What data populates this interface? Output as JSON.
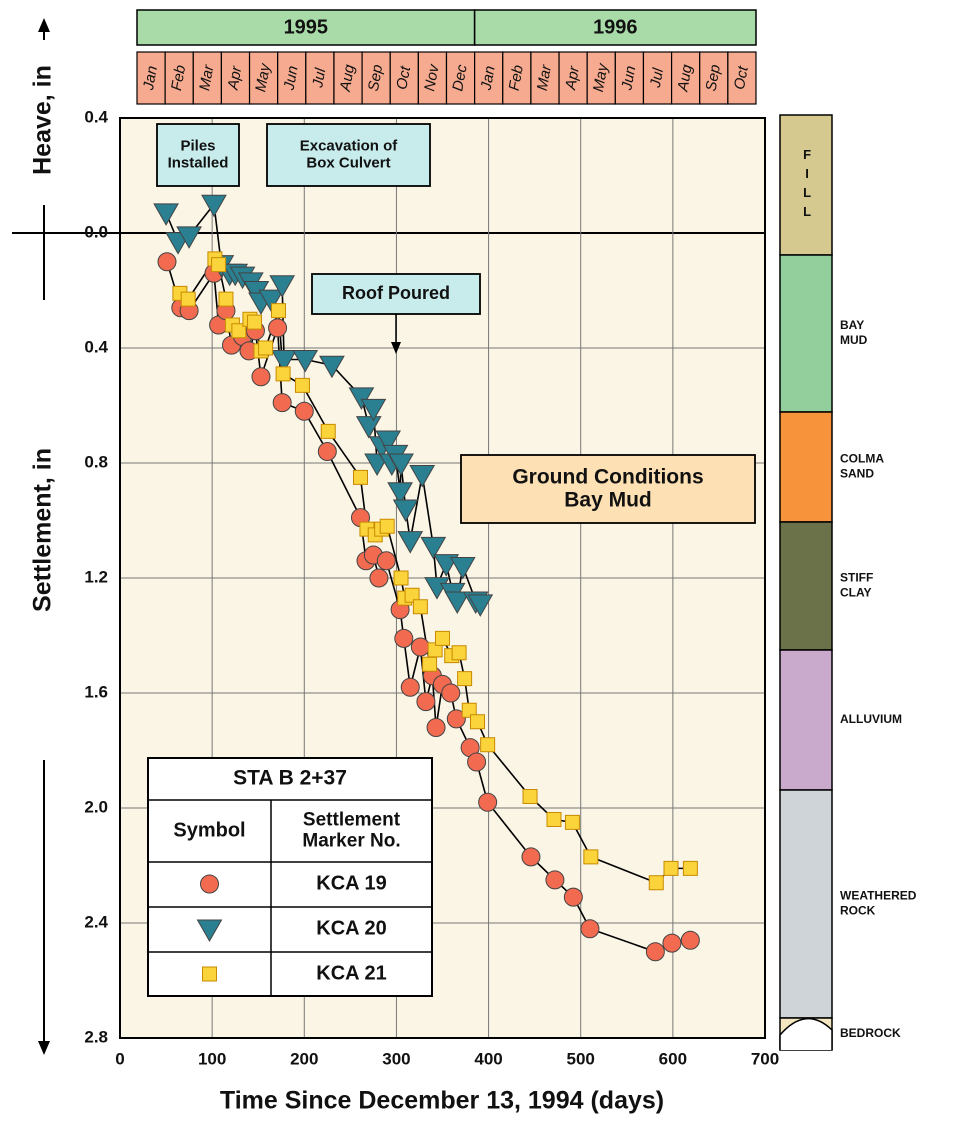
{
  "chart_data": {
    "type": "scatter-line",
    "x_label": "Time Since December 13, 1994 (days)",
    "heave_label": "Heave, in",
    "settlement_label": "Settlement, in",
    "y_inverted": true,
    "grid": true,
    "xlim": [
      0,
      700
    ],
    "xticks": [
      0,
      100,
      200,
      300,
      400,
      500,
      600,
      700
    ],
    "ylim": [
      -0.4,
      2.8
    ],
    "yticks": [
      {
        "value": -0.4,
        "label": "0.4"
      },
      {
        "value": 0,
        "label": "0.0"
      },
      {
        "value": 0.4,
        "label": "0.4"
      },
      {
        "value": 0.8,
        "label": "0.8"
      },
      {
        "value": 1.2,
        "label": "1.2"
      },
      {
        "value": 1.6,
        "label": "1.6"
      },
      {
        "value": 2.0,
        "label": "2.0"
      },
      {
        "value": 2.4,
        "label": "2.4"
      },
      {
        "value": 2.8,
        "label": "2.8"
      }
    ],
    "years": [
      {
        "label": "1995",
        "months": [
          "Jan",
          "Feb",
          "Mar",
          "Apr",
          "May",
          "Jun",
          "Jul",
          "Aug",
          "Sep",
          "Oct",
          "Nov",
          "Dec"
        ]
      },
      {
        "label": "1996",
        "months": [
          "Jan",
          "Feb",
          "Mar",
          "Apr",
          "May",
          "Jun",
          "Jul",
          "Aug",
          "Sep",
          "Oct"
        ]
      }
    ],
    "annotations": [
      {
        "lines": [
          "Piles",
          "Installed"
        ]
      },
      {
        "lines": [
          "Excavation of",
          "Box Culvert"
        ]
      },
      {
        "lines": [
          "Roof Poured"
        ]
      },
      {
        "lines": [
          "Ground Conditions",
          "Bay Mud"
        ]
      }
    ],
    "legend": {
      "title": "STA B 2+37",
      "col1": "Symbol",
      "col2": [
        "Settlement",
        "Marker No."
      ]
    },
    "soil_layers": [
      {
        "label": [
          "FILL"
        ],
        "color": "#d5c98f"
      },
      {
        "label": [
          "BAY",
          "MUD"
        ],
        "color": "#93cf9c"
      },
      {
        "label": [
          "COLMA",
          "SAND"
        ],
        "color": "#f7933a"
      },
      {
        "label": [
          "STIFF",
          "CLAY"
        ],
        "color": "#6b7249"
      },
      {
        "label": [
          "ALLUVIUM"
        ],
        "color": "#c9a9cc"
      },
      {
        "label": [
          "WEATHERED",
          "ROCK"
        ],
        "color": "#cfd4d8"
      },
      {
        "label": [
          "BEDROCK"
        ],
        "color": "#f3e6c0"
      }
    ],
    "series": [
      {
        "name": "KCA 19",
        "marker": "circle",
        "color": "#f26b50",
        "x": [
          51,
          66,
          75,
          102,
          107,
          115,
          121,
          133,
          140,
          147,
          153,
          171,
          176,
          200,
          225,
          261,
          267,
          275,
          281,
          289,
          304,
          308,
          315,
          326,
          332,
          339,
          343,
          350,
          359,
          365,
          380,
          387,
          399,
          446,
          472,
          492,
          510,
          581,
          599,
          619
        ],
        "values": [
          0.1,
          0.26,
          0.27,
          0.14,
          0.32,
          0.27,
          0.39,
          0.36,
          0.41,
          0.34,
          0.5,
          0.33,
          0.59,
          0.62,
          0.76,
          0.99,
          1.14,
          1.12,
          1.2,
          1.14,
          1.31,
          1.41,
          1.58,
          1.44,
          1.63,
          1.54,
          1.72,
          1.57,
          1.6,
          1.69,
          1.79,
          1.84,
          1.98,
          2.17,
          2.25,
          2.31,
          2.42,
          2.5,
          2.47,
          2.46
        ]
      },
      {
        "name": "KCA 20",
        "marker": "triangle",
        "color": "#2a7f90",
        "x": [
          50,
          63,
          75,
          102,
          110,
          119,
          125,
          133,
          142,
          148,
          153,
          164,
          176,
          178,
          201,
          230,
          262,
          270,
          275,
          279,
          284,
          291,
          295,
          299,
          304,
          305,
          310,
          315,
          328,
          340,
          344,
          354,
          361,
          366,
          372,
          386,
          391
        ],
        "values": [
          -0.07,
          0.03,
          0.01,
          -0.1,
          0.11,
          0.14,
          0.14,
          0.15,
          0.17,
          0.2,
          0.24,
          0.23,
          0.18,
          0.44,
          0.44,
          0.46,
          0.57,
          0.67,
          0.61,
          0.8,
          0.74,
          0.72,
          0.8,
          0.77,
          0.9,
          0.8,
          0.96,
          1.07,
          0.84,
          1.09,
          1.23,
          1.15,
          1.25,
          1.28,
          1.16,
          1.28,
          1.29
        ]
      },
      {
        "name": "KCA 21",
        "marker": "square",
        "color": "#fad43a",
        "x": [
          65,
          74,
          103,
          107,
          115,
          122,
          129,
          141,
          146,
          153,
          158,
          172,
          177,
          198,
          226,
          261,
          268,
          277,
          284,
          290,
          305,
          309,
          317,
          326,
          336,
          342,
          350,
          360,
          368,
          374,
          379,
          388,
          399,
          445,
          471,
          491,
          511,
          582,
          598,
          619
        ],
        "values": [
          0.21,
          0.23,
          0.09,
          0.11,
          0.23,
          0.32,
          0.34,
          0.3,
          0.31,
          0.41,
          0.4,
          0.27,
          0.49,
          0.53,
          0.69,
          0.85,
          1.03,
          1.05,
          1.03,
          1.02,
          1.2,
          1.27,
          1.26,
          1.3,
          1.5,
          1.45,
          1.41,
          1.47,
          1.46,
          1.55,
          1.66,
          1.7,
          1.78,
          1.96,
          2.04,
          2.05,
          2.17,
          2.26,
          2.21,
          2.21
        ]
      }
    ]
  }
}
